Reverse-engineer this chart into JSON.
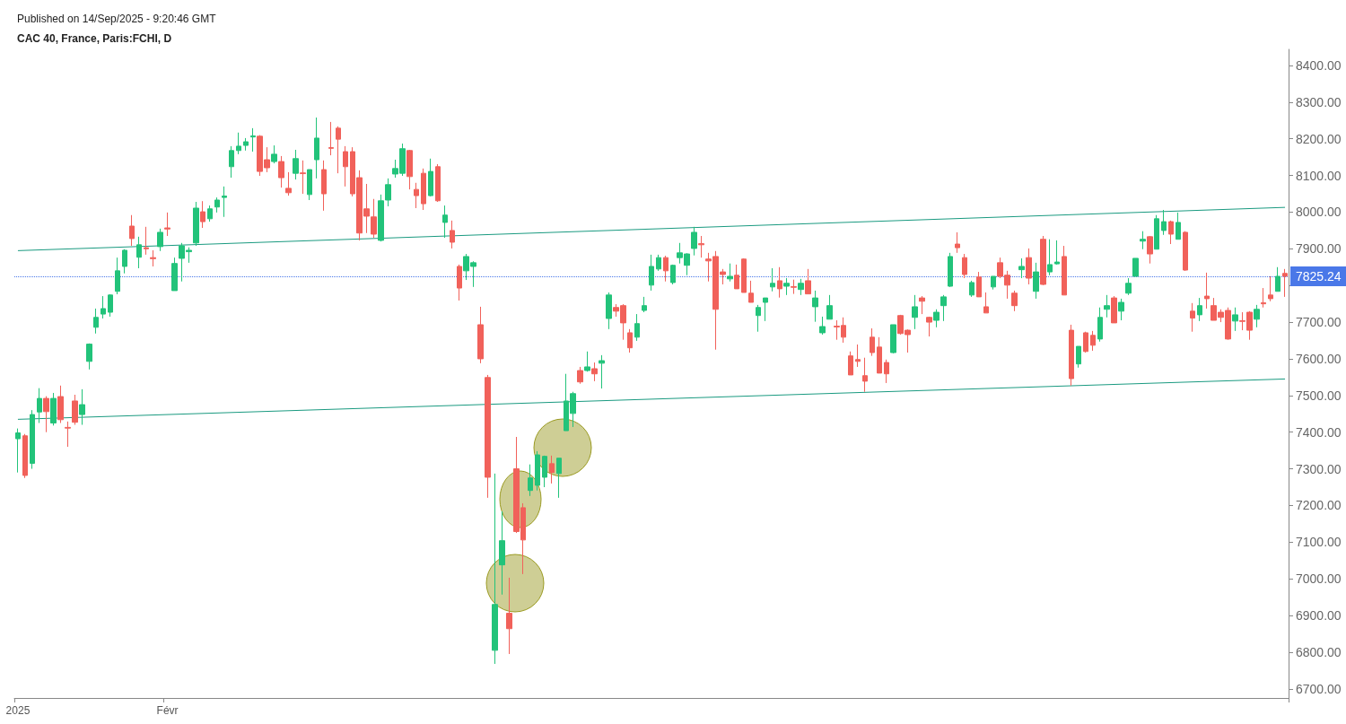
{
  "chart_data": {
    "type": "candlestick",
    "title": "CAC 40, France, Paris:FCHI, D",
    "annotations": [
      "Published on 14/Sep/2025 - 9:20:46 GMT"
    ],
    "categories": [
      "2025",
      null,
      null,
      null,
      null,
      null,
      null,
      null,
      null,
      null,
      null,
      null,
      null,
      null,
      null,
      null,
      null,
      null,
      null,
      null,
      null,
      "Févr",
      null,
      null,
      null,
      null,
      null,
      null,
      null,
      null,
      null,
      null,
      null,
      null,
      null,
      null,
      null,
      null,
      null,
      null,
      null,
      null,
      null,
      null,
      null,
      null,
      null,
      null,
      null,
      null,
      null,
      null,
      null,
      null,
      null,
      null,
      null,
      null,
      null,
      null,
      null,
      null,
      null,
      null,
      null,
      null,
      null,
      null,
      null,
      null,
      null,
      null,
      null,
      null,
      null,
      null,
      null,
      null,
      null,
      null,
      null,
      null,
      null,
      null,
      null,
      null,
      null,
      null,
      null,
      null,
      null,
      null,
      null,
      null,
      null,
      null,
      null,
      null,
      null,
      null,
      null,
      null,
      null,
      null,
      null,
      null,
      null,
      null,
      null,
      null,
      null,
      null,
      null,
      null,
      null,
      null,
      null,
      null,
      null,
      null,
      null,
      null,
      null,
      null,
      null,
      null,
      null,
      null,
      null,
      null,
      null,
      null,
      null,
      null,
      null,
      null,
      null,
      null,
      null,
      null,
      null,
      null,
      null,
      null,
      null,
      null,
      null,
      null,
      null,
      null,
      null,
      null,
      null,
      null,
      null,
      null,
      null,
      null,
      null,
      null,
      null,
      null,
      null,
      null,
      null,
      null,
      null,
      null,
      null,
      null,
      null,
      null,
      null,
      null,
      null,
      null,
      null,
      null,
      null
    ],
    "ohlc": [
      [
        7382,
        7410,
        7290,
        7398
      ],
      [
        7390,
        7395,
        7275,
        7282
      ],
      [
        7315,
        7460,
        7300,
        7448
      ],
      [
        7455,
        7520,
        7425,
        7492
      ],
      [
        7492,
        7498,
        7400,
        7456
      ],
      [
        7425,
        7507,
        7418,
        7492
      ],
      [
        7497,
        7527,
        7425,
        7434
      ],
      [
        7413,
        7429,
        7360,
        7411
      ],
      [
        7485,
        7502,
        7420,
        7427
      ],
      [
        7448,
        7517,
        7420,
        7475
      ],
      [
        7593,
        7642,
        7571,
        7640
      ],
      [
        7686,
        7737,
        7669,
        7713
      ],
      [
        7722,
        7771,
        7710,
        7737
      ],
      [
        7727,
        7776,
        7715,
        7774
      ],
      [
        7784,
        7876,
        7776,
        7840
      ],
      [
        7852,
        7899,
        7833,
        7896
      ],
      [
        7962,
        7992,
        7908,
        7928
      ],
      [
        7877,
        7933,
        7847,
        7911
      ],
      [
        7903,
        7960,
        7884,
        7900
      ],
      [
        7876,
        7896,
        7852,
        7873
      ],
      [
        7906,
        7955,
        7894,
        7945
      ],
      [
        7957,
        7999,
        7935,
        7954
      ],
      [
        7786,
        7876,
        7786,
        7860
      ],
      [
        7874,
        7916,
        7811,
        7908
      ],
      [
        7892,
        7904,
        7862,
        7896
      ],
      [
        7916,
        8028,
        7908,
        8011
      ],
      [
        8001,
        8030,
        7957,
        7974
      ],
      [
        7982,
        8018,
        7974,
        8009
      ],
      [
        8014,
        8040,
        7999,
        8033
      ],
      [
        8040,
        8070,
        7987,
        8044
      ],
      [
        8124,
        8180,
        8094,
        8168
      ],
      [
        8168,
        8217,
        8158,
        8180
      ],
      [
        8182,
        8202,
        8168,
        8192
      ],
      [
        8205,
        8229,
        8165,
        8208
      ],
      [
        8207,
        8210,
        8099,
        8111
      ],
      [
        8143,
        8177,
        8109,
        8121
      ],
      [
        8138,
        8182,
        8133,
        8158
      ],
      [
        8138,
        8153,
        8067,
        8094
      ],
      [
        8065,
        8109,
        8045,
        8053
      ],
      [
        8106,
        8170,
        8089,
        8146
      ],
      [
        8107,
        8141,
        8050,
        8105
      ],
      [
        8048,
        8116,
        8033,
        8116
      ],
      [
        8143,
        8258,
        8092,
        8202
      ],
      [
        8116,
        8141,
        8004,
        8050
      ],
      [
        8176,
        8246,
        8155,
        8174
      ],
      [
        8229,
        8234,
        8106,
        8199
      ],
      [
        8165,
        8180,
        8070,
        8124
      ],
      [
        8165,
        8177,
        8043,
        8050
      ],
      [
        8094,
        8114,
        7923,
        7943
      ],
      [
        8009,
        8077,
        7943,
        7989
      ],
      [
        7987,
        8036,
        7930,
        7940
      ],
      [
        7923,
        8048,
        7920,
        8031
      ],
      [
        8033,
        8092,
        8016,
        8075
      ],
      [
        8104,
        8143,
        8094,
        8119
      ],
      [
        8106,
        8187,
        8099,
        8173
      ],
      [
        8168,
        8170,
        8062,
        8097
      ],
      [
        8062,
        8080,
        8011,
        8045
      ],
      [
        8106,
        8119,
        8006,
        8023
      ],
      [
        8045,
        8146,
        8043,
        8111
      ],
      [
        8124,
        8131,
        8028,
        8031
      ],
      [
        7972,
        8018,
        7930,
        7992
      ],
      [
        7950,
        7977,
        7901,
        7918
      ],
      [
        7852,
        7857,
        7759,
        7793
      ],
      [
        7840,
        7886,
        7815,
        7879
      ],
      [
        7852,
        7866,
        7796,
        7862
      ],
      [
        7693,
        7742,
        7588,
        7600
      ],
      [
        7549,
        7556,
        7221,
        7277
      ],
      [
        6805,
        7287,
        6768,
        6930
      ],
      [
        7038,
        7184,
        6957,
        7104
      ],
      [
        6906,
        7003,
        6795,
        6864
      ],
      [
        7300,
        7387,
        7125,
        7129
      ],
      [
        7194,
        7206,
        7013,
        7106
      ],
      [
        7241,
        7312,
        7226,
        7275
      ],
      [
        7255,
        7348,
        7241,
        7338
      ],
      [
        7277,
        7336,
        7250,
        7334
      ],
      [
        7314,
        7336,
        7260,
        7290
      ],
      [
        7287,
        7329,
        7221,
        7329
      ],
      [
        7404,
        7559,
        7404,
        7485
      ],
      [
        7451,
        7510,
        7414,
        7505
      ],
      [
        7568,
        7578,
        7532,
        7537
      ],
      [
        7568,
        7620,
        7565,
        7578
      ],
      [
        7573,
        7590,
        7539,
        7559
      ],
      [
        7588,
        7610,
        7519,
        7595
      ],
      [
        7710,
        7781,
        7681,
        7774
      ],
      [
        7740,
        7749,
        7715,
        7730
      ],
      [
        7745,
        7749,
        7652,
        7698
      ],
      [
        7671,
        7681,
        7617,
        7630
      ],
      [
        7659,
        7722,
        7649,
        7696
      ],
      [
        7732,
        7769,
        7727,
        7745
      ],
      [
        7801,
        7884,
        7786,
        7852
      ],
      [
        7845,
        7884,
        7840,
        7876
      ],
      [
        7876,
        7881,
        7811,
        7840
      ],
      [
        7808,
        7857,
        7803,
        7855
      ],
      [
        7876,
        7916,
        7860,
        7889
      ],
      [
        7855,
        7888,
        7828,
        7886
      ],
      [
        7901,
        7960,
        7882,
        7945
      ],
      [
        7914,
        7935,
        7876,
        7911
      ],
      [
        7872,
        7889,
        7811,
        7867
      ],
      [
        7879,
        7894,
        7625,
        7735
      ],
      [
        7837,
        7845,
        7803,
        7830
      ],
      [
        7818,
        7860,
        7811,
        7825
      ],
      [
        7828,
        7857,
        7791,
        7791
      ],
      [
        7872,
        7874,
        7781,
        7781
      ],
      [
        7779,
        7813,
        7754,
        7754
      ],
      [
        7718,
        7747,
        7674,
        7740
      ],
      [
        7754,
        7766,
        7703,
        7766
      ],
      [
        7796,
        7847,
        7784,
        7806
      ],
      [
        7813,
        7850,
        7767,
        7791
      ],
      [
        7798,
        7820,
        7774,
        7806
      ],
      [
        7797,
        7816,
        7777,
        7795
      ],
      [
        7789,
        7818,
        7774,
        7806
      ],
      [
        7813,
        7845,
        7777,
        7777
      ],
      [
        7742,
        7786,
        7701,
        7766
      ],
      [
        7671,
        7715,
        7666,
        7688
      ],
      [
        7708,
        7774,
        7708,
        7745
      ],
      [
        7689,
        7705,
        7652,
        7687
      ],
      [
        7691,
        7713,
        7644,
        7659
      ],
      [
        7608,
        7620,
        7556,
        7556
      ],
      [
        7598,
        7639,
        7578,
        7593
      ],
      [
        7554,
        7603,
        7510,
        7539
      ],
      [
        7659,
        7683,
        7608,
        7617
      ],
      [
        7632,
        7659,
        7561,
        7561
      ],
      [
        7590,
        7598,
        7534,
        7559
      ],
      [
        7617,
        7693,
        7615,
        7693
      ],
      [
        7718,
        7720,
        7666,
        7669
      ],
      [
        7678,
        7680,
        7617,
        7666
      ],
      [
        7713,
        7774,
        7681,
        7742
      ],
      [
        7766,
        7771,
        7722,
        7757
      ],
      [
        7713,
        7715,
        7661,
        7700
      ],
      [
        7705,
        7735,
        7686,
        7727
      ],
      [
        7745,
        7774,
        7703,
        7769
      ],
      [
        7798,
        7889,
        7796,
        7879
      ],
      [
        7913,
        7945,
        7889,
        7903
      ],
      [
        7876,
        7886,
        7820,
        7830
      ],
      [
        7774,
        7813,
        7769,
        7808
      ],
      [
        7823,
        7837,
        7769,
        7769
      ],
      [
        7742,
        7781,
        7725,
        7725
      ],
      [
        7796,
        7825,
        7789,
        7825
      ],
      [
        7862,
        7876,
        7820,
        7825
      ],
      [
        7828,
        7840,
        7764,
        7801
      ],
      [
        7779,
        7786,
        7730,
        7745
      ],
      [
        7843,
        7874,
        7820,
        7852
      ],
      [
        7876,
        7901,
        7803,
        7820
      ],
      [
        7784,
        7862,
        7764,
        7837
      ],
      [
        7926,
        7935,
        7801,
        7803
      ],
      [
        7837,
        7926,
        7828,
        7857
      ],
      [
        7859,
        7923,
        7857,
        7864
      ],
      [
        7879,
        7908,
        7774,
        7774
      ],
      [
        7678,
        7693,
        7527,
        7546
      ],
      [
        7586,
        7634,
        7576,
        7634
      ],
      [
        7671,
        7674,
        7617,
        7620
      ],
      [
        7664,
        7676,
        7622,
        7637
      ],
      [
        7654,
        7740,
        7647,
        7713
      ],
      [
        7735,
        7774,
        7713,
        7745
      ],
      [
        7766,
        7771,
        7698,
        7698
      ],
      [
        7730,
        7764,
        7705,
        7754
      ],
      [
        7779,
        7820,
        7774,
        7806
      ],
      [
        7825,
        7874,
        7825,
        7874
      ],
      [
        7921,
        7948,
        7899,
        7926
      ],
      [
        7933,
        7935,
        7860,
        7886
      ],
      [
        7899,
        7992,
        7899,
        7982
      ],
      [
        7950,
        8006,
        7938,
        7974
      ],
      [
        7974,
        7977,
        7913,
        7940
      ],
      [
        7926,
        7999,
        7926,
        7972
      ],
      [
        7945,
        7948,
        7840,
        7842
      ],
      [
        7730,
        7752,
        7674,
        7711
      ],
      [
        7720,
        7766,
        7703,
        7745
      ],
      [
        7771,
        7835,
        7737,
        7764
      ],
      [
        7745,
        7766,
        7705,
        7705
      ],
      [
        7727,
        7735,
        7700,
        7713
      ],
      [
        7732,
        7740,
        7652,
        7654
      ],
      [
        7703,
        7740,
        7676,
        7720
      ],
      [
        7704,
        7727,
        7678,
        7702
      ],
      [
        7727,
        7730,
        7652,
        7678
      ],
      [
        7708,
        7747,
        7686,
        7735
      ],
      [
        7753,
        7793,
        7740,
        7750
      ],
      [
        7774,
        7825,
        7757,
        7764
      ],
      [
        7784,
        7850,
        7784,
        7825
      ],
      [
        7833,
        7845,
        7769,
        7825.24
      ]
    ],
    "colors": [
      "#22c37a",
      "#f1615a",
      "#22c37a",
      "#22c37a",
      "#f1615a",
      "#22c37a",
      "#f1615a",
      "#f1615a",
      "#f1615a",
      "#22c37a",
      "#22c37a",
      "#22c37a",
      "#22c37a",
      "#22c37a",
      "#22c37a",
      "#22c37a",
      "#f1615a",
      "#22c37a",
      "#f1615a",
      "#f1615a",
      "#22c37a",
      "#f1615a",
      "#22c37a",
      "#22c37a",
      "#22c37a",
      "#22c37a",
      "#f1615a",
      "#22c37a",
      "#22c37a",
      "#22c37a",
      "#22c37a",
      "#22c37a",
      "#22c37a",
      "#22c37a",
      "#f1615a",
      "#f1615a",
      "#22c37a",
      "#f1615a",
      "#f1615a",
      "#22c37a",
      "#f1615a",
      "#22c37a",
      "#22c37a",
      "#f1615a",
      "#f1615a",
      "#f1615a",
      "#f1615a",
      "#f1615a",
      "#f1615a",
      "#f1615a",
      "#f1615a",
      "#22c37a",
      "#22c37a",
      "#22c37a",
      "#22c37a",
      "#f1615a",
      "#f1615a",
      "#f1615a",
      "#22c37a",
      "#f1615a",
      "#22c37a",
      "#f1615a",
      "#f1615a",
      "#22c37a",
      "#22c37a",
      "#f1615a",
      "#f1615a",
      "#22c37a",
      "#22c37a",
      "#f1615a",
      "#f1615a",
      "#f1615a",
      "#22c37a",
      "#22c37a",
      "#22c37a",
      "#f1615a",
      "#22c37a",
      "#22c37a",
      "#22c37a",
      "#f1615a",
      "#22c37a",
      "#f1615a",
      "#22c37a",
      "#22c37a",
      "#f1615a",
      "#f1615a",
      "#f1615a",
      "#22c37a",
      "#22c37a",
      "#22c37a",
      "#22c37a",
      "#f1615a",
      "#22c37a",
      "#22c37a",
      "#22c37a",
      "#22c37a",
      "#f1615a",
      "#f1615a",
      "#f1615a",
      "#f1615a",
      "#22c37a",
      "#f1615a",
      "#f1615a",
      "#f1615a",
      "#22c37a",
      "#22c37a",
      "#22c37a",
      "#f1615a",
      "#22c37a",
      "#f1615a",
      "#22c37a",
      "#f1615a",
      "#22c37a",
      "#22c37a",
      "#22c37a",
      "#f1615a",
      "#f1615a",
      "#f1615a",
      "#f1615a",
      "#f1615a",
      "#f1615a",
      "#f1615a",
      "#f1615a",
      "#22c37a",
      "#f1615a",
      "#f1615a",
      "#22c37a",
      "#f1615a",
      "#f1615a",
      "#22c37a",
      "#22c37a",
      "#22c37a",
      "#f1615a",
      "#f1615a",
      "#22c37a",
      "#f1615a",
      "#f1615a",
      "#22c37a",
      "#f1615a",
      "#f1615a",
      "#f1615a",
      "#22c37a",
      "#f1615a",
      "#22c37a",
      "#f1615a",
      "#22c37a",
      "#22c37a",
      "#f1615a",
      "#f1615a",
      "#22c37a",
      "#f1615a",
      "#f1615a",
      "#22c37a",
      "#22c37a",
      "#f1615a",
      "#22c37a",
      "#22c37a",
      "#22c37a",
      "#22c37a",
      "#f1615a",
      "#22c37a",
      "#22c37a",
      "#f1615a",
      "#22c37a",
      "#f1615a",
      "#f1615a",
      "#22c37a",
      "#f1615a",
      "#f1615a",
      "#f1615a",
      "#f1615a",
      "#22c37a",
      "#f1615a",
      "#f1615a",
      "#22c37a",
      "#f1615a",
      "#f1615a",
      "#22c37a",
      "#f1615a"
    ],
    "series": [
      {
        "type": "line",
        "color": "#1a9a80",
        "values": [
          7895,
          null,
          null,
          null,
          null,
          null,
          null,
          null,
          null,
          null,
          null,
          null,
          null,
          null,
          null,
          null,
          null,
          null,
          null,
          null,
          null,
          null,
          null,
          null,
          null,
          null,
          null,
          null,
          null,
          null,
          null,
          null,
          null,
          null,
          null,
          null,
          null,
          null,
          null,
          null,
          null,
          null,
          null,
          null,
          null,
          null,
          null,
          null,
          null,
          null,
          null,
          null,
          null,
          null,
          null,
          null,
          null,
          null,
          null,
          null,
          null,
          null,
          null,
          null,
          null,
          null,
          null,
          null,
          null,
          null,
          null,
          null,
          null,
          null,
          null,
          null,
          null,
          null,
          null,
          null,
          null,
          null,
          null,
          null,
          null,
          null,
          null,
          null,
          null,
          null,
          null,
          null,
          null,
          null,
          null,
          null,
          null,
          null,
          null,
          null,
          null,
          null,
          null,
          null,
          null,
          null,
          null,
          null,
          null,
          null,
          null,
          null,
          null,
          null,
          null,
          null,
          null,
          null,
          null,
          null,
          null,
          null,
          null,
          null,
          null,
          null,
          null,
          null,
          null,
          null,
          null,
          null,
          null,
          null,
          null,
          null,
          null,
          null,
          null,
          null,
          null,
          null,
          null,
          null,
          null,
          null,
          null,
          null,
          null,
          null,
          null,
          null,
          null,
          null,
          null,
          null,
          null,
          null,
          null,
          null,
          null,
          null,
          null,
          null,
          null,
          null,
          null,
          null,
          null,
          null,
          null,
          null,
          null,
          null,
          null,
          null,
          null,
          null,
          8013
        ]
      },
      {
        "type": "line",
        "color": "#1a9a80",
        "values": [
          7435,
          null,
          null,
          null,
          null,
          null,
          null,
          null,
          null,
          null,
          null,
          null,
          null,
          null,
          null,
          null,
          null,
          null,
          null,
          null,
          null,
          null,
          null,
          null,
          null,
          null,
          null,
          null,
          null,
          null,
          null,
          null,
          null,
          null,
          null,
          null,
          null,
          null,
          null,
          null,
          null,
          null,
          null,
          null,
          null,
          null,
          null,
          null,
          null,
          null,
          null,
          null,
          null,
          null,
          null,
          null,
          null,
          null,
          null,
          null,
          null,
          null,
          null,
          null,
          null,
          null,
          null,
          null,
          null,
          null,
          null,
          null,
          null,
          null,
          null,
          null,
          null,
          null,
          null,
          null,
          null,
          null,
          null,
          null,
          null,
          null,
          null,
          null,
          null,
          null,
          null,
          null,
          null,
          null,
          null,
          null,
          null,
          null,
          null,
          null,
          null,
          null,
          null,
          null,
          null,
          null,
          null,
          null,
          null,
          null,
          null,
          null,
          null,
          null,
          null,
          null,
          null,
          null,
          null,
          null,
          null,
          null,
          null,
          null,
          null,
          null,
          null,
          null,
          null,
          null,
          null,
          null,
          null,
          null,
          null,
          null,
          null,
          null,
          null,
          null,
          null,
          null,
          null,
          null,
          null,
          null,
          null,
          null,
          null,
          null,
          null,
          null,
          null,
          null,
          null,
          null,
          null,
          null,
          null,
          null,
          null,
          null,
          null,
          null,
          null,
          null,
          null,
          null,
          null,
          null,
          null,
          null,
          null,
          null,
          null,
          null,
          null,
          null,
          7545
        ]
      }
    ],
    "ylim": [
      6675,
      8444
    ],
    "yticks": [
      {
        "value": 6700,
        "label": "6700.00"
      },
      {
        "value": 6800,
        "label": "6800.00"
      },
      {
        "value": 6900,
        "label": "6900.00"
      },
      {
        "value": 7000,
        "label": "7000.00"
      },
      {
        "value": 7100,
        "label": "7100.00"
      },
      {
        "value": 7200,
        "label": "7200.00"
      },
      {
        "value": 7300,
        "label": "7300.00"
      },
      {
        "value": 7400,
        "label": "7400.00"
      },
      {
        "value": 7500,
        "label": "7500.00"
      },
      {
        "value": 7600,
        "label": "7600.00"
      },
      {
        "value": 7700,
        "label": "7700.00"
      },
      {
        "value": 7800,
        "label": null
      },
      {
        "value": 7900,
        "label": "7900.00"
      },
      {
        "value": 8000,
        "label": "8000.00"
      },
      {
        "value": 8100,
        "label": "8100.00"
      },
      {
        "value": 8200,
        "label": "8200.00"
      },
      {
        "value": 8300,
        "label": "8300.00"
      },
      {
        "value": 8400,
        "label": "8400.00"
      }
    ],
    "ref_lines": [
      {
        "axis": "y",
        "value": 7825.24,
        "label": "7825.24",
        "color": "#4a78e8",
        "line_style": "dotted"
      }
    ],
    "grid": false
  }
}
